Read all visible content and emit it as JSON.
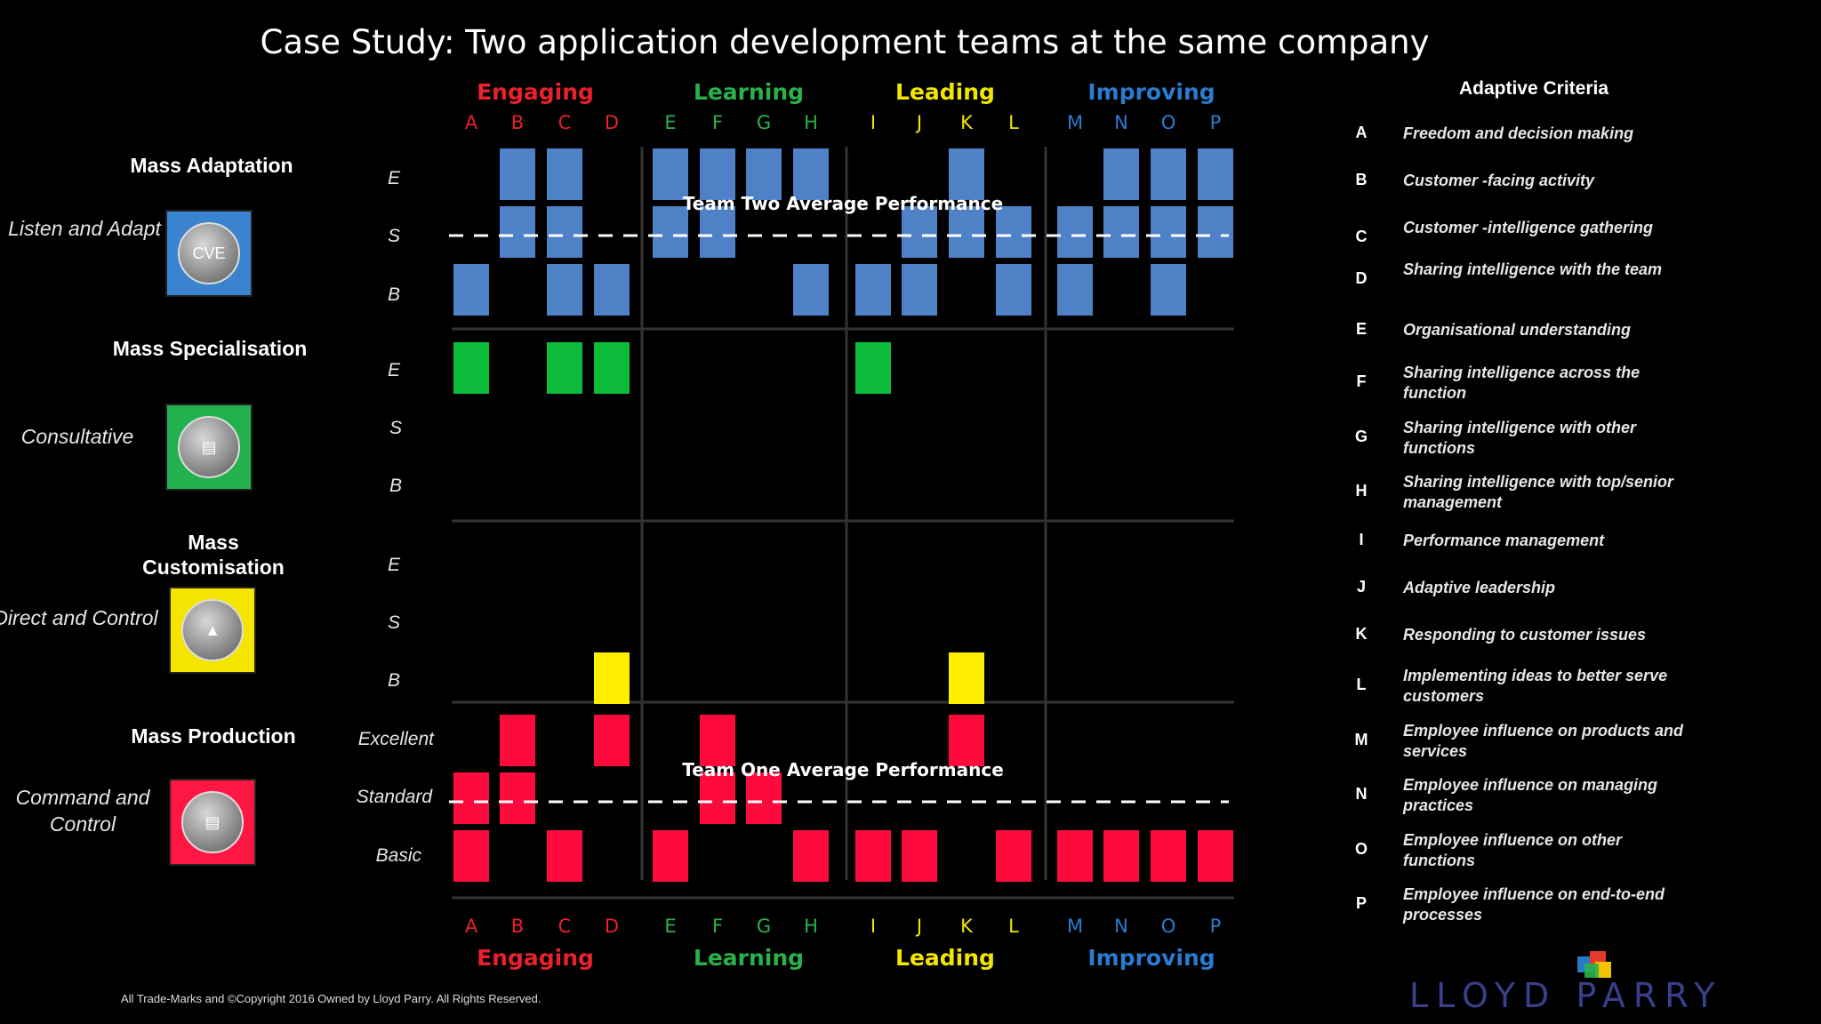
{
  "title": "Case Study: Two application development teams at the same company",
  "groups": [
    {
      "name": "Engaging",
      "color": "#e8212b",
      "letters": [
        "A",
        "B",
        "C",
        "D"
      ]
    },
    {
      "name": "Learning",
      "color": "#2ab24a",
      "letters": [
        "E",
        "F",
        "G",
        "H"
      ]
    },
    {
      "name": "Leading",
      "color": "#f2e600",
      "letters": [
        "I",
        "J",
        "K",
        "L"
      ]
    },
    {
      "name": "Improving",
      "color": "#2b7bd1",
      "letters": [
        "M",
        "N",
        "O",
        "P"
      ]
    }
  ],
  "modes": [
    {
      "title": "Mass Adaptation",
      "subtitle": "Listen and Adapt",
      "icon": "cve-icon",
      "icon_text": "CVE",
      "color": "#3a83cf",
      "rows": [
        "E",
        "S",
        "B"
      ]
    },
    {
      "title": "Mass Specialisation",
      "subtitle": "Consultative",
      "icon": "cake-icon",
      "icon_text": "",
      "color": "#22b14c",
      "rows": [
        "E",
        "S",
        "B"
      ]
    },
    {
      "title": "Mass Customisation",
      "subtitle": "Direct and Control",
      "icon": "pizza-icon",
      "icon_text": "",
      "color": "#f4e400",
      "rows": [
        "E",
        "S",
        "B"
      ]
    },
    {
      "title": "Mass Production",
      "subtitle": "Command and Control",
      "icon": "bus-icon",
      "icon_text": "",
      "color": "#ff1744",
      "rows": [
        "Excellent",
        "Standard",
        "Basic"
      ]
    }
  ],
  "chart_data": {
    "type": "heatmap",
    "title": "Case Study: Two application development teams at the same company",
    "columns": [
      "A",
      "B",
      "C",
      "D",
      "E",
      "F",
      "G",
      "H",
      "I",
      "J",
      "K",
      "L",
      "M",
      "N",
      "O",
      "P"
    ],
    "levels": [
      "E",
      "S",
      "B"
    ],
    "series": [
      {
        "name": "Team Two",
        "mode": "Mass Adaptation",
        "color": "#4f81c7",
        "cells": {
          "E": [
            "B",
            "C",
            "E",
            "F",
            "G",
            "H",
            "K",
            "N",
            "O",
            "P"
          ],
          "S": [
            "B",
            "C",
            "E",
            "F",
            "J",
            "K",
            "L",
            "M",
            "N",
            "O",
            "P"
          ],
          "B": [
            "A",
            "C",
            "D",
            "H",
            "I",
            "J",
            "L",
            "M",
            "O"
          ]
        },
        "average_label": "Team Two Average Performance",
        "average_level": "S"
      },
      {
        "name": "",
        "mode": "Mass Specialisation",
        "color": "#0dbb3a",
        "cells": {
          "E": [
            "A",
            "C",
            "D",
            "I"
          ],
          "S": [],
          "B": []
        }
      },
      {
        "name": "",
        "mode": "Mass Customisation",
        "color": "#ffee00",
        "cells": {
          "E": [],
          "S": [],
          "B": [
            "D",
            "K"
          ]
        }
      },
      {
        "name": "Team One",
        "mode": "Mass Production",
        "color": "#ff0a3c",
        "cells": {
          "E": [
            "B",
            "D",
            "F",
            "K"
          ],
          "S": [
            "A",
            "B",
            "F",
            "G"
          ],
          "B": [
            "A",
            "C",
            "E",
            "H",
            "I",
            "J",
            "L",
            "M",
            "N",
            "O",
            "P"
          ]
        },
        "average_label": "Team One Average Performance",
        "average_level": "S"
      }
    ]
  },
  "criteria": {
    "heading": "Adaptive Criteria",
    "items": [
      {
        "key": "A",
        "text": "Freedom and decision making"
      },
      {
        "key": "B",
        "text": "Customer -facing activity"
      },
      {
        "key": "C",
        "text": "Customer -intelligence gathering"
      },
      {
        "key": "D",
        "text": "Sharing intelligence with the team"
      },
      {
        "key": "E",
        "text": "Organisational understanding"
      },
      {
        "key": "F",
        "text": "Sharing intelligence across the function"
      },
      {
        "key": "G",
        "text": "Sharing intelligence with other functions"
      },
      {
        "key": "H",
        "text": "Sharing intelligence with top/senior management"
      },
      {
        "key": "I",
        "text": "Performance management"
      },
      {
        "key": "J",
        "text": "Adaptive leadership"
      },
      {
        "key": "K",
        "text": "Responding to customer issues"
      },
      {
        "key": "L",
        "text": "Implementing ideas to better serve customers"
      },
      {
        "key": "M",
        "text": "Employee influence on products and services"
      },
      {
        "key": "N",
        "text": "Employee influence on managing practices"
      },
      {
        "key": "O",
        "text": "Employee influence on other functions"
      },
      {
        "key": "P",
        "text": "Employee influence on end-to-end processes"
      }
    ]
  },
  "footer": {
    "copyright": "All Trade-Marks and ©Copyright 2016 Owned by Lloyd Parry. All Rights Reserved.",
    "logo": "LLOYD PARRY"
  }
}
